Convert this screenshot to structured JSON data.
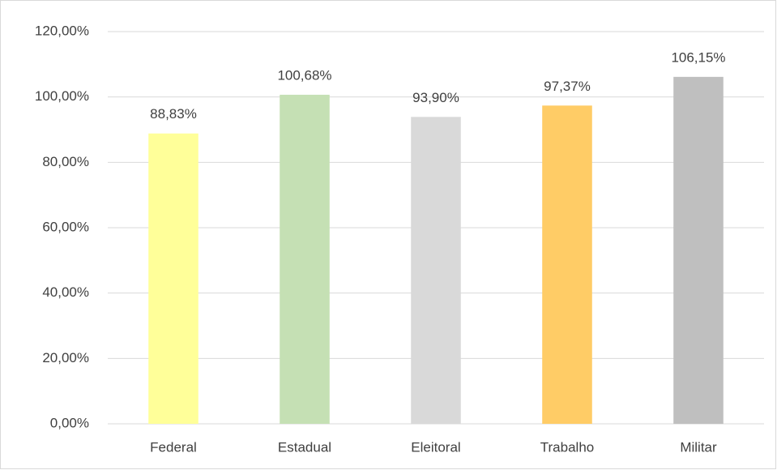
{
  "chart_data": {
    "type": "bar",
    "categories": [
      "Federal",
      "Estadual",
      "Eleitoral",
      "Trabalho",
      "Militar"
    ],
    "values": [
      88.83,
      100.68,
      93.9,
      97.37,
      106.15
    ],
    "value_labels": [
      "88,83%",
      "100,68%",
      "93,90%",
      "97,37%",
      "106,15%"
    ],
    "colors": [
      "#FFFF99",
      "#C5E0B4",
      "#D9D9D9",
      "#FFCC66",
      "#BFBFBF"
    ],
    "ylim": [
      0,
      120
    ],
    "yticks": [
      {
        "value": 0,
        "label": "0,00%"
      },
      {
        "value": 20,
        "label": "20,00%"
      },
      {
        "value": 40,
        "label": "40,00%"
      },
      {
        "value": 60,
        "label": "60,00%"
      },
      {
        "value": 80,
        "label": "80,00%"
      },
      {
        "value": 100,
        "label": "100,00%"
      },
      {
        "value": 120,
        "label": "120,00%"
      }
    ],
    "grid": true
  }
}
